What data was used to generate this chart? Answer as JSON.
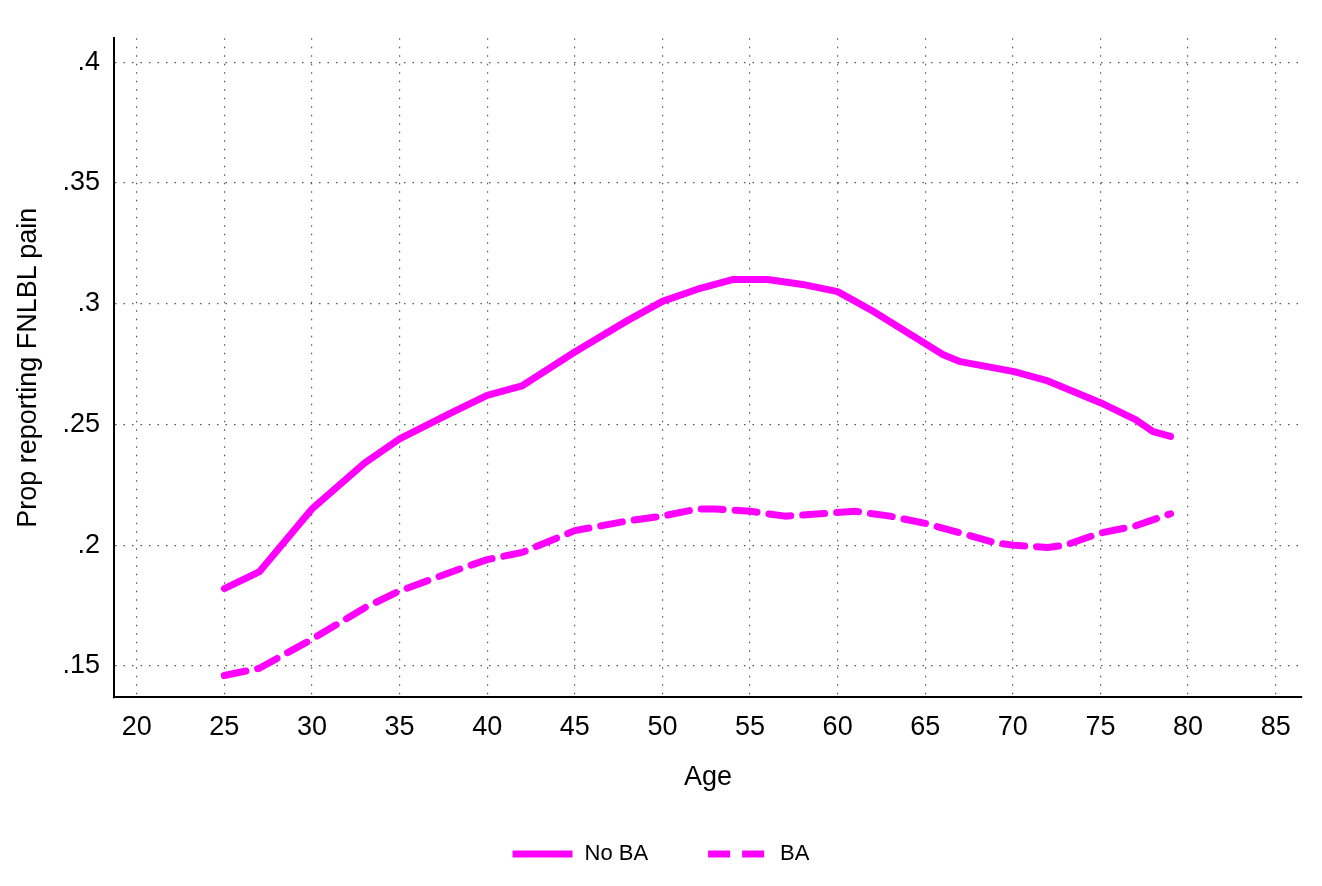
{
  "chart_data": {
    "type": "line",
    "xlabel": "Age",
    "ylabel": "Prop reporting FNLBL pain",
    "xlim": [
      18.7,
      86.5
    ],
    "xticks": [
      20,
      25,
      30,
      35,
      40,
      45,
      50,
      55,
      60,
      65,
      70,
      75,
      80,
      85
    ],
    "ylim": [
      0.137,
      0.41
    ],
    "yticks": [
      {
        "value": 0.15,
        "label": ".15"
      },
      {
        "value": 0.2,
        "label": ".2"
      },
      {
        "value": 0.25,
        "label": ".25"
      },
      {
        "value": 0.3,
        "label": ".3"
      },
      {
        "value": 0.35,
        "label": ".35"
      },
      {
        "value": 0.4,
        "label": ".4"
      }
    ],
    "grid": true,
    "legend": "bottom",
    "marker": "none",
    "series": [
      {
        "name": "No BA",
        "color": "#ff00ff",
        "line_style": "solid",
        "x": [
          25,
          27,
          30,
          33,
          35,
          38,
          40,
          42,
          45,
          48,
          50,
          52,
          54,
          56,
          58,
          60,
          62,
          64,
          66,
          67,
          70,
          72,
          73,
          75,
          77,
          78,
          79
        ],
        "values": [
          0.182,
          0.189,
          0.215,
          0.234,
          0.244,
          0.255,
          0.262,
          0.266,
          0.28,
          0.293,
          0.301,
          0.306,
          0.31,
          0.31,
          0.308,
          0.305,
          0.297,
          0.288,
          0.279,
          0.276,
          0.272,
          0.268,
          0.265,
          0.259,
          0.252,
          0.247,
          0.245
        ]
      },
      {
        "name": "BA",
        "color": "#ff00ff",
        "line_style": "dashed",
        "x": [
          25,
          27,
          30,
          33,
          35,
          38,
          40,
          42,
          45,
          48,
          50,
          52,
          53,
          55,
          57,
          59,
          61,
          63,
          65,
          67,
          69,
          70,
          72,
          73,
          75,
          77,
          79
        ],
        "values": [
          0.146,
          0.149,
          0.161,
          0.174,
          0.181,
          0.189,
          0.194,
          0.197,
          0.206,
          0.21,
          0.212,
          0.215,
          0.215,
          0.214,
          0.212,
          0.213,
          0.214,
          0.212,
          0.209,
          0.205,
          0.201,
          0.2,
          0.199,
          0.2,
          0.205,
          0.208,
          0.213
        ]
      }
    ]
  }
}
